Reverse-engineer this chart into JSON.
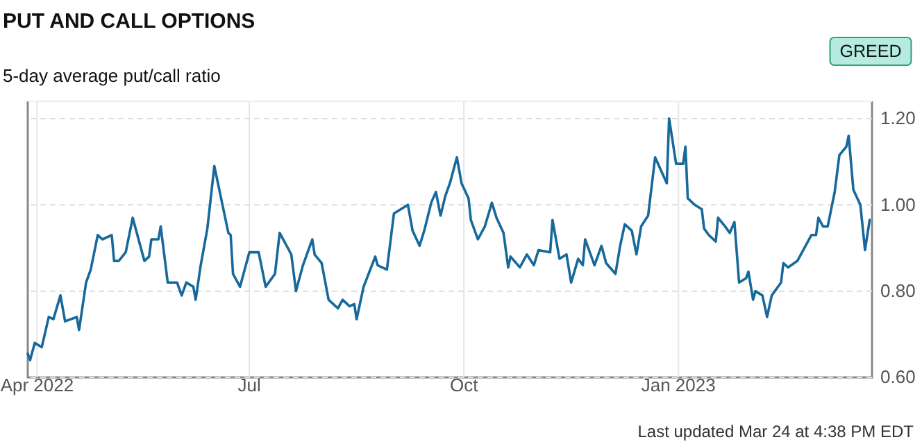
{
  "chart_data": {
    "type": "line",
    "title": "PUT AND CALL OPTIONS",
    "subtitle": "5-day average put/call ratio",
    "annotations": [
      "GREED",
      "Last updated Mar 24 at 4:38 PM EDT"
    ],
    "x": [
      "2022-03-28",
      "2022-03-29",
      "2022-03-31",
      "2022-04-03",
      "2022-04-06",
      "2022-04-08",
      "2022-04-11",
      "2022-04-13",
      "2022-04-18",
      "2022-04-19",
      "2022-04-22",
      "2022-04-24",
      "2022-04-27",
      "2022-04-29",
      "2022-05-03",
      "2022-05-04",
      "2022-05-06",
      "2022-05-09",
      "2022-05-12",
      "2022-05-17",
      "2022-05-19",
      "2022-05-20",
      "2022-05-23",
      "2022-05-24",
      "2022-05-27",
      "2022-05-31",
      "2022-06-02",
      "2022-06-04",
      "2022-06-07",
      "2022-06-08",
      "2022-06-10",
      "2022-06-13",
      "2022-06-16",
      "2022-06-22",
      "2022-06-23",
      "2022-06-24",
      "2022-06-27",
      "2022-07-01",
      "2022-07-05",
      "2022-07-08",
      "2022-07-12",
      "2022-07-14",
      "2022-07-19",
      "2022-07-21",
      "2022-07-24",
      "2022-07-26",
      "2022-07-28",
      "2022-07-29",
      "2022-08-01",
      "2022-08-04",
      "2022-08-08",
      "2022-08-10",
      "2022-08-13",
      "2022-08-15",
      "2022-08-16",
      "2022-08-19",
      "2022-08-24",
      "2022-08-25",
      "2022-08-29",
      "2022-09-01",
      "2022-09-07",
      "2022-09-09",
      "2022-09-12",
      "2022-09-14",
      "2022-09-17",
      "2022-09-19",
      "2022-09-21",
      "2022-09-23",
      "2022-09-25",
      "2022-09-28",
      "2022-09-30",
      "2022-10-03",
      "2022-10-04",
      "2022-10-07",
      "2022-10-10",
      "2022-10-13",
      "2022-10-15",
      "2022-10-18",
      "2022-10-20",
      "2022-10-21",
      "2022-10-25",
      "2022-10-28",
      "2022-10-31",
      "2022-11-02",
      "2022-11-07",
      "2022-11-08",
      "2022-11-11",
      "2022-11-14",
      "2022-11-16",
      "2022-11-19",
      "2022-11-21",
      "2022-11-22",
      "2022-11-26",
      "2022-11-29",
      "2022-12-01",
      "2022-12-05",
      "2022-12-07",
      "2022-12-09",
      "2022-12-12",
      "2022-12-14",
      "2022-12-16",
      "2022-12-19",
      "2022-12-22",
      "2022-12-27",
      "2022-12-28",
      "2022-12-31",
      "2023-01-03",
      "2023-01-04",
      "2023-01-05",
      "2023-01-08",
      "2023-01-11",
      "2023-01-12",
      "2023-01-14",
      "2023-01-17",
      "2023-01-18",
      "2023-01-21",
      "2023-01-23",
      "2023-01-25",
      "2023-01-27",
      "2023-01-30",
      "2023-01-31",
      "2023-02-02",
      "2023-02-03",
      "2023-02-06",
      "2023-02-08",
      "2023-02-10",
      "2023-02-14",
      "2023-02-15",
      "2023-02-17",
      "2023-02-21",
      "2023-02-27",
      "2023-03-01",
      "2023-03-02",
      "2023-03-04",
      "2023-03-06",
      "2023-03-09",
      "2023-03-11",
      "2023-03-14",
      "2023-03-15",
      "2023-03-17",
      "2023-03-20",
      "2023-03-22",
      "2023-03-24"
    ],
    "series": [
      {
        "color": "#17699b",
        "values": [
          0.655,
          0.64,
          0.68,
          0.67,
          0.74,
          0.735,
          0.79,
          0.73,
          0.74,
          0.71,
          0.82,
          0.85,
          0.93,
          0.92,
          0.93,
          0.87,
          0.87,
          0.89,
          0.97,
          0.87,
          0.88,
          0.92,
          0.92,
          0.95,
          0.82,
          0.82,
          0.79,
          0.82,
          0.81,
          0.78,
          0.855,
          0.945,
          1.09,
          0.935,
          0.93,
          0.84,
          0.81,
          0.89,
          0.89,
          0.81,
          0.84,
          0.935,
          0.885,
          0.8,
          0.86,
          0.89,
          0.92,
          0.885,
          0.865,
          0.78,
          0.76,
          0.78,
          0.765,
          0.77,
          0.735,
          0.81,
          0.88,
          0.86,
          0.85,
          0.98,
          1.0,
          0.94,
          0.905,
          0.94,
          1.005,
          1.03,
          0.975,
          1.02,
          1.05,
          1.11,
          1.05,
          1.015,
          0.965,
          0.92,
          0.95,
          1.005,
          0.97,
          0.935,
          0.855,
          0.88,
          0.855,
          0.885,
          0.86,
          0.895,
          0.89,
          0.965,
          0.875,
          0.885,
          0.82,
          0.875,
          0.86,
          0.92,
          0.86,
          0.905,
          0.865,
          0.84,
          0.905,
          0.955,
          0.94,
          0.885,
          0.95,
          0.975,
          1.11,
          1.05,
          1.2,
          1.095,
          1.095,
          1.135,
          1.015,
          1.0,
          0.99,
          0.945,
          0.93,
          0.915,
          0.97,
          0.95,
          0.935,
          0.96,
          0.82,
          0.83,
          0.845,
          0.78,
          0.8,
          0.79,
          0.74,
          0.79,
          0.82,
          0.865,
          0.855,
          0.87,
          0.93,
          0.93,
          0.97,
          0.95,
          0.95,
          1.03,
          1.115,
          1.135,
          1.16,
          1.035,
          1.0,
          0.895,
          0.965
        ]
      }
    ],
    "xlim": [
      "2022-03-28",
      "2023-03-25"
    ],
    "xticks": [
      {
        "value": "2022-04-01",
        "label": "Apr 2022"
      },
      {
        "value": "2022-07-01",
        "label": "Jul"
      },
      {
        "value": "2022-10-01",
        "label": "Oct"
      },
      {
        "value": "2023-01-01",
        "label": "Jan 2023"
      }
    ],
    "ylim": [
      0.6,
      1.24
    ],
    "yticks": [
      {
        "value": 0.6,
        "label": "0.60"
      },
      {
        "value": 0.8,
        "label": "0.80"
      },
      {
        "value": 1.0,
        "label": "1.00"
      },
      {
        "value": 1.2,
        "label": "1.20"
      }
    ],
    "grid": true,
    "marker": "none",
    "line_style": "solid"
  }
}
